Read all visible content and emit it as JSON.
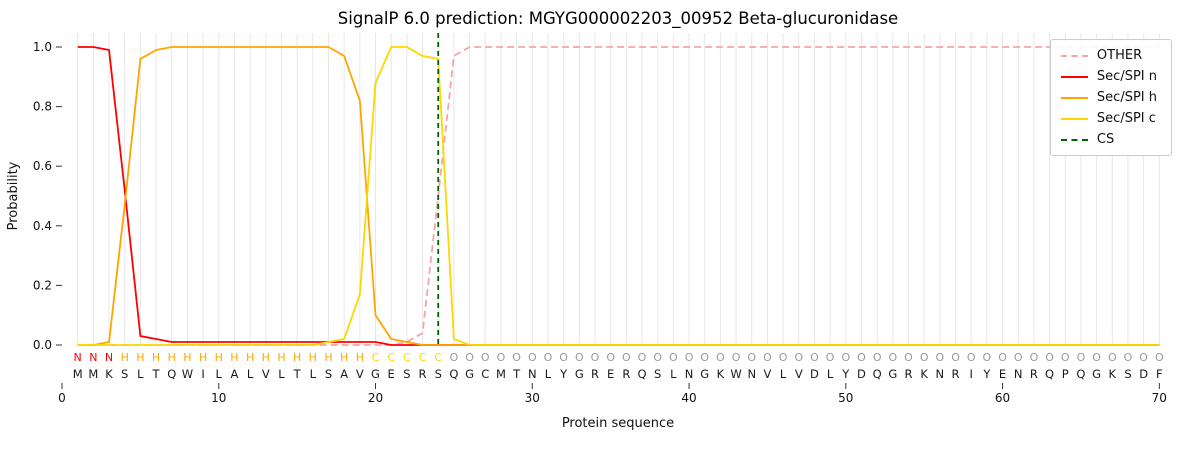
{
  "chart_data": {
    "type": "line",
    "title": "SignalP 6.0 prediction: MGYG000002203_00952 Beta-glucuronidase",
    "xlabel": "Protein sequence",
    "ylabel": "Probability",
    "xlim": [
      0,
      71
    ],
    "ylim": [
      0.0,
      1.05
    ],
    "x_ticks": [
      0,
      10,
      20,
      30,
      40,
      50,
      60,
      70
    ],
    "y_ticks": [
      0.0,
      0.2,
      0.4,
      0.6,
      0.8,
      1.0
    ],
    "x_start": 1,
    "grid": "vertical line per residue",
    "legend_location": "upper right",
    "series": [
      {
        "name": "OTHER",
        "color": "#f4a6a6",
        "dash": true,
        "values": [
          0,
          0,
          0,
          0,
          0,
          0,
          0,
          0,
          0,
          0,
          0,
          0,
          0,
          0,
          0,
          0,
          0,
          0,
          0,
          0,
          0,
          0.01,
          0.04,
          0.5,
          0.97,
          1,
          1,
          1,
          1,
          1,
          1,
          1,
          1,
          1,
          1,
          1,
          1,
          1,
          1,
          1,
          1,
          1,
          1,
          1,
          1,
          1,
          1,
          1,
          1,
          1,
          1,
          1,
          1,
          1,
          1,
          1,
          1,
          1,
          1,
          1,
          1,
          1,
          1,
          1,
          1,
          1,
          1,
          1,
          1,
          1
        ]
      },
      {
        "name": "Sec/SPI n",
        "color": "#ff0000",
        "dash": false,
        "values": [
          1,
          1,
          0.99,
          0.52,
          0.03,
          0.02,
          0.01,
          0.01,
          0.01,
          0.01,
          0.01,
          0.01,
          0.01,
          0.01,
          0.01,
          0.01,
          0.01,
          0.01,
          0.01,
          0.01,
          0,
          0,
          0,
          0,
          0,
          0,
          0,
          0,
          0,
          0,
          0,
          0,
          0,
          0,
          0,
          0,
          0,
          0,
          0,
          0,
          0,
          0,
          0,
          0,
          0,
          0,
          0,
          0,
          0,
          0,
          0,
          0,
          0,
          0,
          0,
          0,
          0,
          0,
          0,
          0,
          0,
          0,
          0,
          0,
          0,
          0,
          0,
          0,
          0,
          0
        ]
      },
      {
        "name": "Sec/SPI h",
        "color": "#ffa500",
        "dash": false,
        "values": [
          0,
          0,
          0.01,
          0.47,
          0.96,
          0.99,
          1,
          1,
          1,
          1,
          1,
          1,
          1,
          1,
          1,
          1,
          1,
          0.97,
          0.82,
          0.1,
          0.02,
          0.01,
          0,
          0,
          0,
          0,
          0,
          0,
          0,
          0,
          0,
          0,
          0,
          0,
          0,
          0,
          0,
          0,
          0,
          0,
          0,
          0,
          0,
          0,
          0,
          0,
          0,
          0,
          0,
          0,
          0,
          0,
          0,
          0,
          0,
          0,
          0,
          0,
          0,
          0,
          0,
          0,
          0,
          0,
          0,
          0,
          0,
          0,
          0,
          0
        ]
      },
      {
        "name": "Sec/SPI c",
        "color": "#ffd700",
        "dash": false,
        "values": [
          0,
          0,
          0,
          0,
          0,
          0,
          0,
          0,
          0,
          0,
          0,
          0,
          0,
          0,
          0,
          0,
          0.01,
          0.02,
          0.17,
          0.88,
          1,
          1,
          0.97,
          0.96,
          0.02,
          0,
          0,
          0,
          0,
          0,
          0,
          0,
          0,
          0,
          0,
          0,
          0,
          0,
          0,
          0,
          0,
          0,
          0,
          0,
          0,
          0,
          0,
          0,
          0,
          0,
          0,
          0,
          0,
          0,
          0,
          0,
          0,
          0,
          0,
          0,
          0,
          0,
          0,
          0,
          0,
          0,
          0,
          0,
          0,
          0
        ]
      }
    ],
    "cs_line": {
      "name": "CS",
      "x": 24,
      "color": "#006400",
      "dash": true
    },
    "region_labels": "NNNHHHHHHHHHHHHHHHHCCCCCOOOOOOOOOOOOOOOOOOOOOOOOOOOOOOOOOOOOOOOOOOOOOO",
    "region_colors": {
      "N": "#ff0000",
      "H": "#ffa500",
      "C": "#ffd700",
      "O": "#999999"
    },
    "sequence": "MMKSLTQWILALVLTLSAVGESRSQGCMTNLYGRERQSLNGKWNVLVDLYDQGRKNRIYENRQPQGKSDF",
    "sequence_color": "#1a1a1a"
  }
}
